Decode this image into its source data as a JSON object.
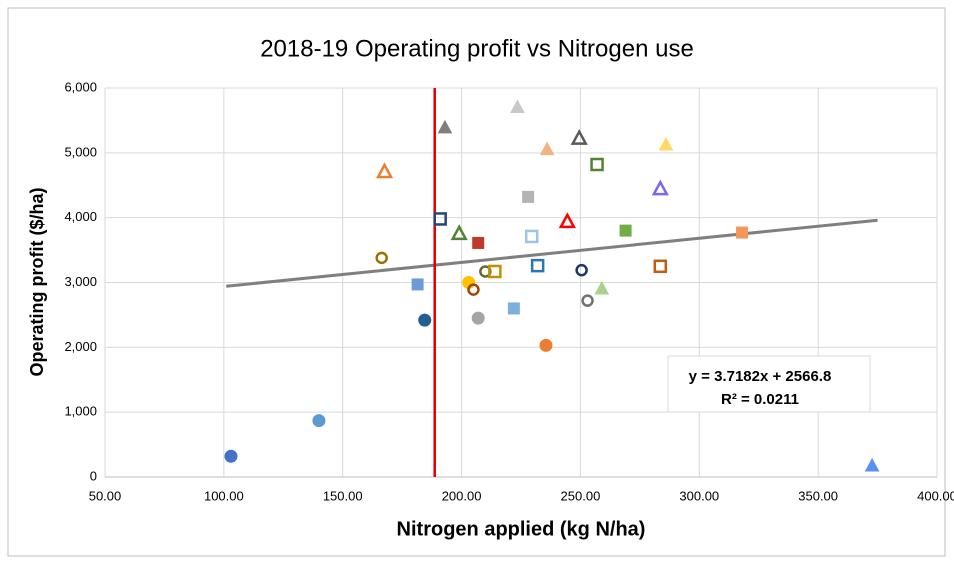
{
  "chart_data": {
    "type": "scatter",
    "title": "2018-19 Operating profit vs Nitrogen use",
    "x_label": "Nitrogen applied (kg N/ha)",
    "y_label": "Operating profit ($/ha)",
    "x": [
      103,
      140,
      184.5,
      181.5,
      166.4,
      167.6,
      191,
      193,
      199,
      207,
      203,
      205,
      210,
      214,
      207,
      222,
      223.5,
      228,
      229.5,
      236,
      235.5,
      232,
      244.5,
      249.5,
      250.5,
      253,
      257,
      259,
      269,
      283.6,
      283.6,
      286,
      318,
      372.7
    ],
    "values": [
      320,
      870,
      2420,
      2970,
      3380,
      4705,
      3980,
      5385,
      3750,
      3610,
      3000,
      2890,
      3170,
      3170,
      2450,
      2600,
      5700,
      4320,
      3710,
      5050,
      2030,
      3260,
      3935,
      5220,
      3190,
      2720,
      4820,
      2900,
      3800,
      3250,
      4440,
      5120,
      3770,
      170
    ],
    "colors": [
      "#4472c4",
      "#5b9bd5",
      "#255e91",
      "#6f9ad9",
      "#997300",
      "#ed7d31",
      "#264478",
      "#7f7f7f",
      "#548235",
      "#c0392b",
      "#ffc000",
      "#9e480e",
      "#636b2f",
      "#bf9000",
      "#a5a5a5",
      "#7cafdd",
      "#c9c9c9",
      "#b4b4b4",
      "#9dc3e6",
      "#f4b183",
      "#ed7d31",
      "#2e75b6",
      "#ff0000",
      "#595959",
      "#203864",
      "#757171",
      "#548235",
      "#a9d18e",
      "#70ad47",
      "#c55a11",
      "#7b68ee",
      "#ffd966",
      "#f4975a",
      "#5b8ff0"
    ],
    "markers": [
      "circle",
      "circle",
      "circle",
      "square",
      "circle",
      "triangle",
      "square",
      "triangle",
      "triangle",
      "square",
      "circle",
      "circle",
      "circle",
      "square",
      "circle",
      "square",
      "triangle",
      "square",
      "square",
      "triangle",
      "circle",
      "square",
      "triangle",
      "triangle",
      "circle",
      "circle",
      "square",
      "triangle",
      "square",
      "square",
      "triangle",
      "triangle",
      "square",
      "triangle"
    ],
    "filled": [
      true,
      true,
      true,
      true,
      false,
      false,
      false,
      true,
      false,
      true,
      true,
      false,
      false,
      false,
      true,
      true,
      true,
      true,
      false,
      true,
      true,
      false,
      false,
      false,
      false,
      false,
      false,
      true,
      true,
      false,
      false,
      true,
      true,
      true
    ],
    "xlim": [
      50,
      400
    ],
    "xticks": [
      {
        "value": 50,
        "label": "50.00"
      },
      {
        "value": 100,
        "label": "100.00"
      },
      {
        "value": 150,
        "label": "150.00"
      },
      {
        "value": 200,
        "label": "200.00"
      },
      {
        "value": 250,
        "label": "250.00"
      },
      {
        "value": 300,
        "label": "300.00"
      },
      {
        "value": 350,
        "label": "350.00"
      },
      {
        "value": 400,
        "label": "400.00"
      }
    ],
    "ylim": [
      0,
      6000
    ],
    "yticks": [
      0,
      {
        "value": 1000,
        "label": "1,000"
      },
      {
        "value": 2000,
        "label": "2,000"
      },
      {
        "value": 3000,
        "label": "3,000"
      },
      {
        "value": 4000,
        "label": "4,000"
      },
      {
        "value": 5000,
        "label": "5,000"
      },
      {
        "value": 6000,
        "label": "6,000"
      }
    ],
    "grid": true,
    "trendline": {
      "x": [
        101,
        375
      ],
      "values": [
        2942,
        3961
      ],
      "color": "#7f7f7f",
      "label": "y = 3.7182x + 2566.8",
      "r2_label": "R² = 0.0211"
    },
    "vline": {
      "value": 188.7,
      "color": "#e00000"
    }
  }
}
